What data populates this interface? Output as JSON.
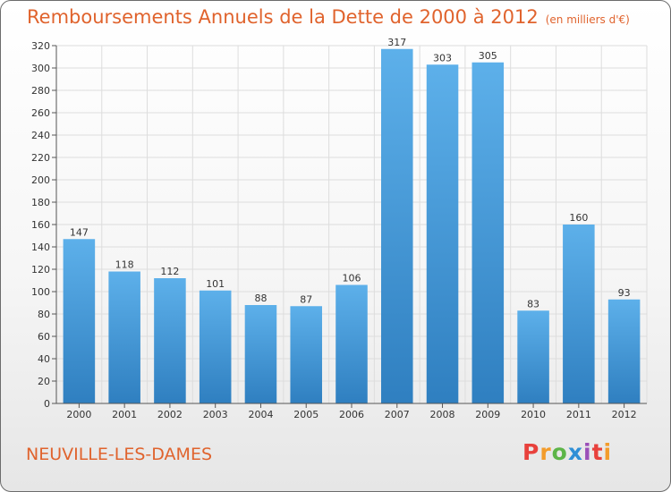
{
  "header": {
    "title": "Remboursements Annuels de la Dette de 2000 à 2012",
    "unit": "(en milliers d'€)"
  },
  "footer": {
    "commune": "NEUVILLE-LES-DAMES",
    "logo_text": "Proxiti",
    "logo_colors": [
      "#e8413c",
      "#f39c2b",
      "#5db548",
      "#2f8fd6",
      "#9b4fb8",
      "#e8413c",
      "#f39c2b"
    ]
  },
  "colors": {
    "bar_top": "#5db0ea",
    "bar_bottom": "#2f7fc0",
    "title": "#e0632d",
    "grid": "#dddddd"
  },
  "chart_data": {
    "type": "bar",
    "title": "Remboursements Annuels de la Dette de 2000 à 2012",
    "subtitle": "(en milliers d'€)",
    "xlabel": "",
    "ylabel": "",
    "categories": [
      "2000",
      "2001",
      "2002",
      "2003",
      "2004",
      "2005",
      "2006",
      "2007",
      "2008",
      "2009",
      "2010",
      "2011",
      "2012"
    ],
    "values": [
      147,
      118,
      112,
      101,
      88,
      87,
      106,
      317,
      303,
      305,
      83,
      160,
      93
    ],
    "ylim": [
      0,
      320
    ],
    "yticks": [
      0,
      20,
      40,
      60,
      80,
      100,
      120,
      140,
      160,
      180,
      200,
      220,
      240,
      260,
      280,
      300,
      320
    ],
    "grid": true,
    "legend": "none"
  }
}
